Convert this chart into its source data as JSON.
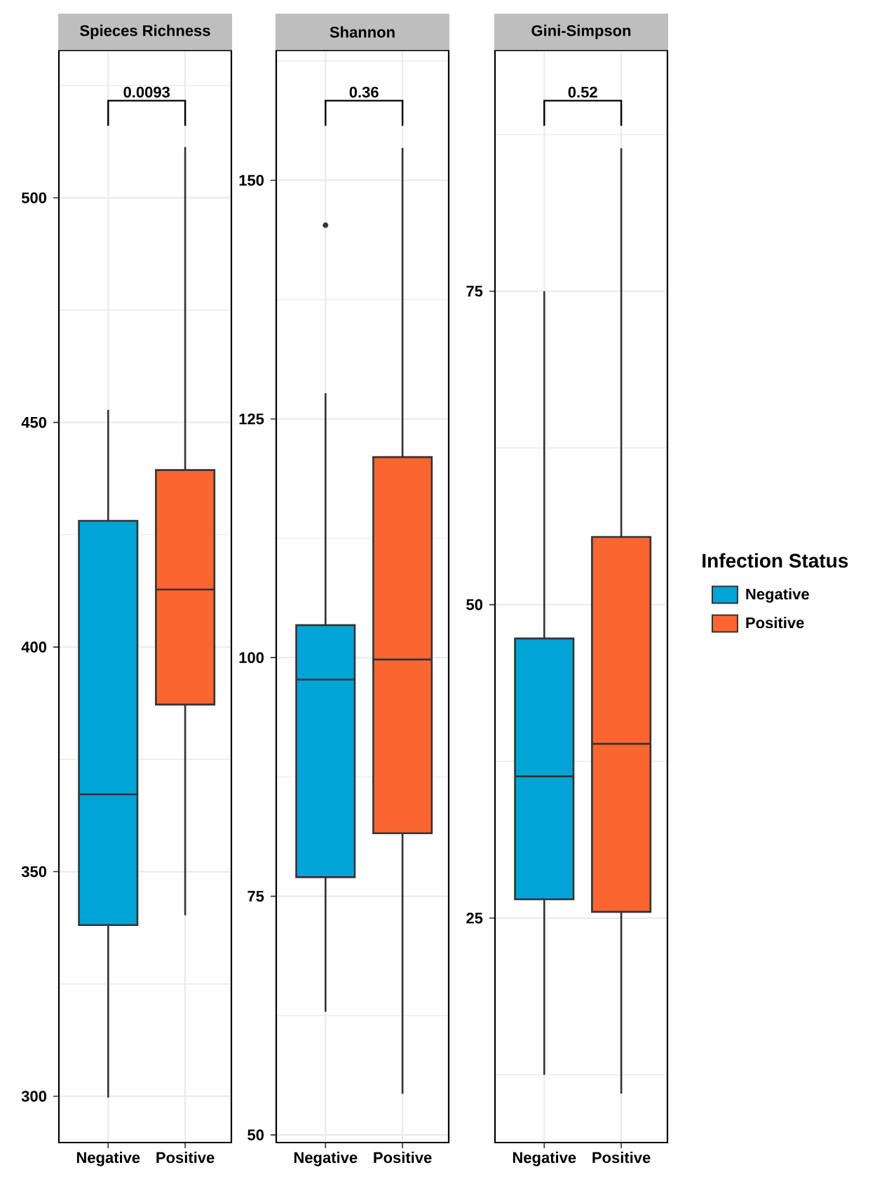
{
  "chart_data": [
    {
      "type": "box",
      "title": "Spieces Richness",
      "categories": [
        "Negative",
        "Positive"
      ],
      "series": [
        {
          "color": "#00a5d6",
          "boxes": [
            {
              "low": 299.7,
              "q1": 338.1,
              "median": 367.2,
              "q3": 428.1,
              "high": 452.8
            },
            null
          ]
        },
        {
          "color": "#fb6630",
          "boxes": [
            null,
            {
              "low": 340.3,
              "q1": 387.2,
              "median": 412.8,
              "q3": 439.4,
              "high": 511.3
            }
          ]
        }
      ],
      "ylim": [
        289.7,
        532.8
      ],
      "yticks": [
        300,
        350,
        400,
        450,
        500
      ],
      "grid": true,
      "annotations": [
        "0.0093"
      ]
    },
    {
      "type": "box",
      "title": "Shannon",
      "categories": [
        "Negative",
        "Positive"
      ],
      "series": [
        {
          "color": "#00a5d6",
          "boxes": [
            {
              "low": 62.9,
              "q1": 77.0,
              "median": 97.7,
              "q3": 103.4,
              "high": 127.7,
              "outliers": [
                145.3
              ]
            },
            null
          ]
        },
        {
          "color": "#fb6630",
          "boxes": [
            null,
            {
              "low": 54.3,
              "q1": 81.6,
              "median": 99.8,
              "q3": 121.0,
              "high": 153.4
            }
          ]
        }
      ],
      "ylim": [
        49.2,
        163.6
      ],
      "yticks": [
        50,
        75,
        100,
        125,
        150
      ],
      "grid": true,
      "annotations": [
        "0.36"
      ]
    },
    {
      "type": "box",
      "title": "Gini-Simpson",
      "categories": [
        "Negative",
        "Positive"
      ],
      "series": [
        {
          "name": "Negative",
          "color": "#00a5d6",
          "boxes": [
            {
              "low": 12.5,
              "q1": 26.5,
              "median": 36.3,
              "q3": 47.3,
              "high": 75.0
            },
            null
          ]
        },
        {
          "name": "Positive",
          "color": "#fb6630",
          "boxes": [
            null,
            {
              "low": 11.0,
              "q1": 25.5,
              "median": 38.9,
              "q3": 55.4,
              "high": 86.4
            }
          ]
        }
      ],
      "ylim": [
        7.1,
        94.2
      ],
      "yticks": [
        25,
        50,
        75
      ],
      "grid": true,
      "annotations": [
        "0.52"
      ],
      "legend": "right",
      "legend_title": "Infection Status"
    }
  ]
}
